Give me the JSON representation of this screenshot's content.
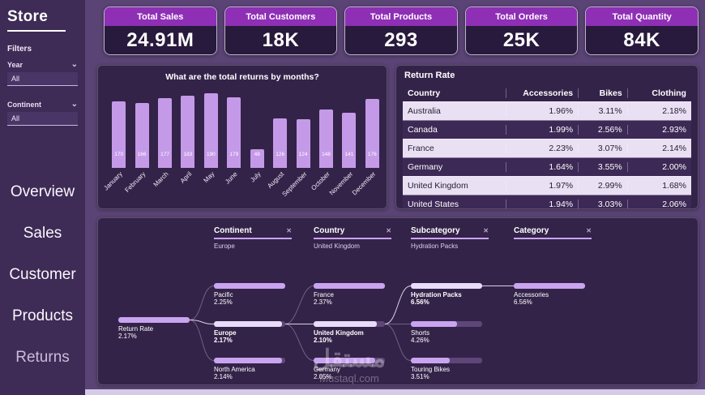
{
  "icons": {
    "chevron_down": "⌄",
    "close": "✕"
  },
  "colors": {
    "background": "#5a4375",
    "sidebar": "#3e2b56",
    "panel": "#342349",
    "kpi_header": "#8e2fb5",
    "kpi_body": "#281a3c",
    "bar_fill": "#c49ae8",
    "row_light": "#e9e0f3",
    "row_dark": "#3d2955",
    "tree_fill": "#c9a4ef"
  },
  "sidebar": {
    "title": "Store",
    "filters_label": "Filters",
    "year": {
      "label": "Year",
      "value": "All"
    },
    "continent": {
      "label": "Continent",
      "value": "All"
    },
    "nav": [
      {
        "label": "Overview"
      },
      {
        "label": "Sales"
      },
      {
        "label": "Customer"
      },
      {
        "label": "Products"
      },
      {
        "label": "Returns"
      }
    ]
  },
  "kpis": [
    {
      "label": "Total Sales",
      "value": "24.91M"
    },
    {
      "label": "Total Customers",
      "value": "18K"
    },
    {
      "label": "Total Products",
      "value": "293"
    },
    {
      "label": "Total Orders",
      "value": "25K"
    },
    {
      "label": "Total Quantity",
      "value": "84K"
    }
  ],
  "chart_data": {
    "type": "bar",
    "title": "What are the total returns by months?",
    "categories": [
      "January",
      "February",
      "March",
      "April",
      "May",
      "June",
      "July",
      "August",
      "September",
      "October",
      "November",
      "December"
    ],
    "values": [
      170,
      166,
      177,
      183,
      190,
      179,
      48,
      126,
      124,
      148,
      141,
      176
    ],
    "xlabel": "",
    "ylabel": "",
    "ylim": [
      0,
      190
    ],
    "grid": false,
    "legend": "none"
  },
  "return_rate_table": {
    "title": "Return Rate",
    "columns": [
      "Country",
      "Accessories",
      "Bikes",
      "Clothing"
    ],
    "rows": [
      [
        "Australia",
        "1.96%",
        "3.11%",
        "2.18%"
      ],
      [
        "Canada",
        "1.99%",
        "2.56%",
        "2.93%"
      ],
      [
        "France",
        "2.23%",
        "3.07%",
        "2.14%"
      ],
      [
        "Germany",
        "1.64%",
        "3.55%",
        "2.00%"
      ],
      [
        "United Kingdom",
        "1.97%",
        "2.99%",
        "1.68%"
      ],
      [
        "United States",
        "1.94%",
        "3.03%",
        "2.06%"
      ]
    ]
  },
  "tree": {
    "levels": [
      {
        "label": "Continent",
        "selected": "Europe"
      },
      {
        "label": "Country",
        "selected": "United Kingdom"
      },
      {
        "label": "Subcategory",
        "selected": "Hydration Packs"
      },
      {
        "label": "Category",
        "selected": ""
      }
    ],
    "root": {
      "label": "Return Rate",
      "value": "2.17%"
    },
    "columns": [
      {
        "level": "Continent",
        "nodes": [
          {
            "label": "Pacific",
            "value": "2.25%",
            "selected": false
          },
          {
            "label": "Europe",
            "value": "2.17%",
            "selected": true
          },
          {
            "label": "North America",
            "value": "2.14%",
            "selected": false
          }
        ]
      },
      {
        "level": "Country",
        "nodes": [
          {
            "label": "France",
            "value": "2.37%",
            "selected": false
          },
          {
            "label": "United Kingdom",
            "value": "2.10%",
            "selected": true
          },
          {
            "label": "Germany",
            "value": "2.05%",
            "selected": false
          }
        ]
      },
      {
        "level": "Subcategory",
        "nodes": [
          {
            "label": "Hydration Packs",
            "value": "6.56%",
            "selected": true
          },
          {
            "label": "Shorts",
            "value": "4.26%",
            "selected": false
          },
          {
            "label": "Touring Bikes",
            "value": "3.51%",
            "selected": false
          }
        ]
      },
      {
        "level": "Category",
        "nodes": [
          {
            "label": "Accessories",
            "value": "6.56%",
            "selected": false
          }
        ]
      }
    ]
  },
  "watermark": {
    "title": "مستقل",
    "subtitle": "Mustaql.com"
  }
}
